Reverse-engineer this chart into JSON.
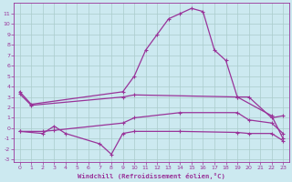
{
  "background_color": "#cce9f0",
  "grid_color": "#aacccc",
  "line_color": "#993399",
  "xlabel": "Windchill (Refroidissement éolien,°C)",
  "xlim": [
    -0.5,
    23.5
  ],
  "ylim": [
    -3.2,
    12.0
  ],
  "yticks": [
    -3,
    -2,
    -1,
    0,
    1,
    2,
    3,
    4,
    5,
    6,
    7,
    8,
    9,
    10,
    11
  ],
  "xticks": [
    0,
    1,
    2,
    3,
    4,
    5,
    6,
    7,
    8,
    9,
    10,
    11,
    12,
    13,
    14,
    15,
    16,
    17,
    18,
    19,
    20,
    21,
    22,
    23
  ],
  "s1_x": [
    0,
    1,
    9,
    10,
    11,
    12,
    13,
    14,
    15,
    16,
    17,
    18,
    19,
    22,
    23
  ],
  "s1_y": [
    3.5,
    2.3,
    3.5,
    5.0,
    7.5,
    9.0,
    10.5,
    11.0,
    11.5,
    11.2,
    7.5,
    6.5,
    3.0,
    1.2,
    -1.0
  ],
  "s2_x": [
    0,
    1,
    9,
    10,
    19,
    20,
    22,
    23
  ],
  "s2_y": [
    3.3,
    2.2,
    3.0,
    3.2,
    3.0,
    3.0,
    1.0,
    1.2
  ],
  "s3_x": [
    0,
    2,
    3,
    9,
    10,
    14,
    19,
    20,
    22,
    23
  ],
  "s3_y": [
    -0.3,
    -0.3,
    -0.2,
    0.5,
    1.0,
    1.5,
    1.5,
    0.8,
    0.5,
    -0.5
  ],
  "s4_x": [
    0,
    2,
    3,
    4,
    7,
    8,
    9,
    10,
    14,
    19,
    20,
    22,
    23
  ],
  "s4_y": [
    -0.3,
    -0.5,
    0.2,
    -0.5,
    -1.5,
    -2.5,
    -0.5,
    -0.3,
    -0.3,
    -0.4,
    -0.5,
    -0.5,
    -1.2
  ]
}
